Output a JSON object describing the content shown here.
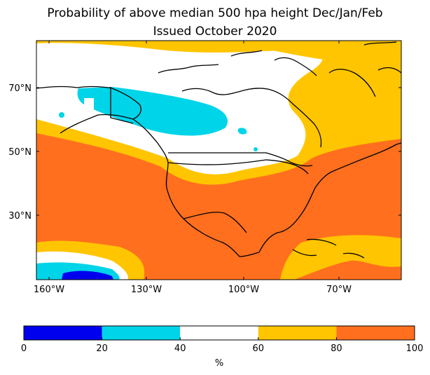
{
  "title_line1": "Probability of above median 500 hpa height Dec/Jan/Feb",
  "title_line2": "Issued October 2020",
  "map": {
    "lat_ticks": [
      "70°N",
      "50°N",
      "30°N"
    ],
    "lon_ticks": [
      "160°W",
      "130°W",
      "100°W",
      "70°W"
    ]
  },
  "colorbar": {
    "label": "%",
    "ticks": [
      "0",
      "20",
      "40",
      "60",
      "80",
      "100"
    ],
    "bins": [
      {
        "from": 0,
        "to": 20,
        "color": "#0000ee"
      },
      {
        "from": 20,
        "to": 40,
        "color": "#00d4e8"
      },
      {
        "from": 40,
        "to": 60,
        "color": "#ffffff"
      },
      {
        "from": 60,
        "to": 80,
        "color": "#ffc500"
      },
      {
        "from": 80,
        "to": 100,
        "color": "#ff6f1e"
      }
    ]
  },
  "colors": {
    "blue": "#0000ee",
    "cyan": "#00d4e8",
    "white": "#ffffff",
    "yellow": "#ffc500",
    "orange": "#ff6f1e"
  }
}
